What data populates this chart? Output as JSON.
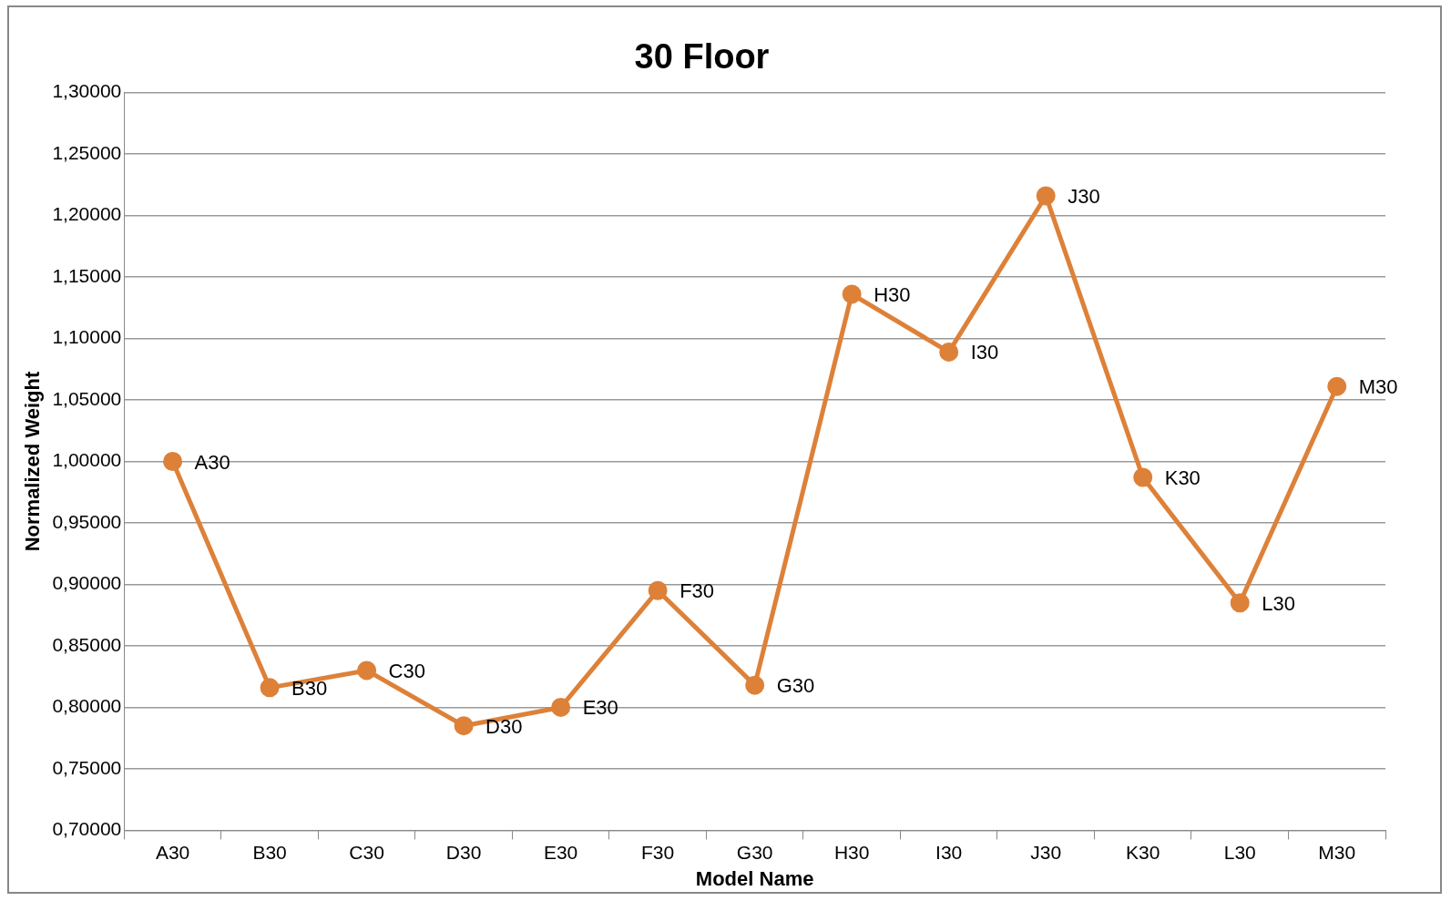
{
  "chart_data": {
    "type": "line",
    "title": "30 Floor",
    "xlabel": "Model Name",
    "ylabel": "Normalized Weight",
    "categories": [
      "A30",
      "B30",
      "C30",
      "D30",
      "E30",
      "F30",
      "G30",
      "H30",
      "I30",
      "J30",
      "K30",
      "L30",
      "M30"
    ],
    "series": [
      {
        "color": "#dd8139",
        "values": [
          1.0,
          0.816,
          0.83,
          0.785,
          0.8,
          0.895,
          0.818,
          1.136,
          1.089,
          1.216,
          0.987,
          0.885,
          1.061
        ]
      }
    ],
    "ylim": [
      0.7,
      1.3
    ],
    "yticks": [
      {
        "value": 0.7,
        "label": "0,70000"
      },
      {
        "value": 0.75,
        "label": "0,75000"
      },
      {
        "value": 0.8,
        "label": "0,80000"
      },
      {
        "value": 0.85,
        "label": "0,85000"
      },
      {
        "value": 0.9,
        "label": "0,90000"
      },
      {
        "value": 0.95,
        "label": "0,95000"
      },
      {
        "value": 1.0,
        "label": "1,00000"
      },
      {
        "value": 1.05,
        "label": "1,05000"
      },
      {
        "value": 1.1,
        "label": "1,10000"
      },
      {
        "value": 1.15,
        "label": "1,15000"
      },
      {
        "value": 1.2,
        "label": "1,20000"
      },
      {
        "value": 1.25,
        "label": "1,25000"
      },
      {
        "value": 1.3,
        "label": "1,30000"
      }
    ],
    "grid": "y",
    "legend": false,
    "marker": "circle",
    "line_style": "solid",
    "annotations": [
      {
        "text": "A30",
        "x": "A30",
        "y": 1.0
      },
      {
        "text": "B30",
        "x": "B30",
        "y": 0.816
      },
      {
        "text": "C30",
        "x": "C30",
        "y": 0.83
      },
      {
        "text": "D30",
        "x": "D30",
        "y": 0.785
      },
      {
        "text": "E30",
        "x": "E30",
        "y": 0.8
      },
      {
        "text": "F30",
        "x": "F30",
        "y": 0.895
      },
      {
        "text": "G30",
        "x": "G30",
        "y": 0.818
      },
      {
        "text": "H30",
        "x": "H30",
        "y": 1.136
      },
      {
        "text": "I30",
        "x": "I30",
        "y": 1.089
      },
      {
        "text": "J30",
        "x": "J30",
        "y": 1.216
      },
      {
        "text": "K30",
        "x": "K30",
        "y": 0.987
      },
      {
        "text": "L30",
        "x": "L30",
        "y": 0.885
      },
      {
        "text": "M30",
        "x": "M30",
        "y": 1.061
      }
    ]
  }
}
